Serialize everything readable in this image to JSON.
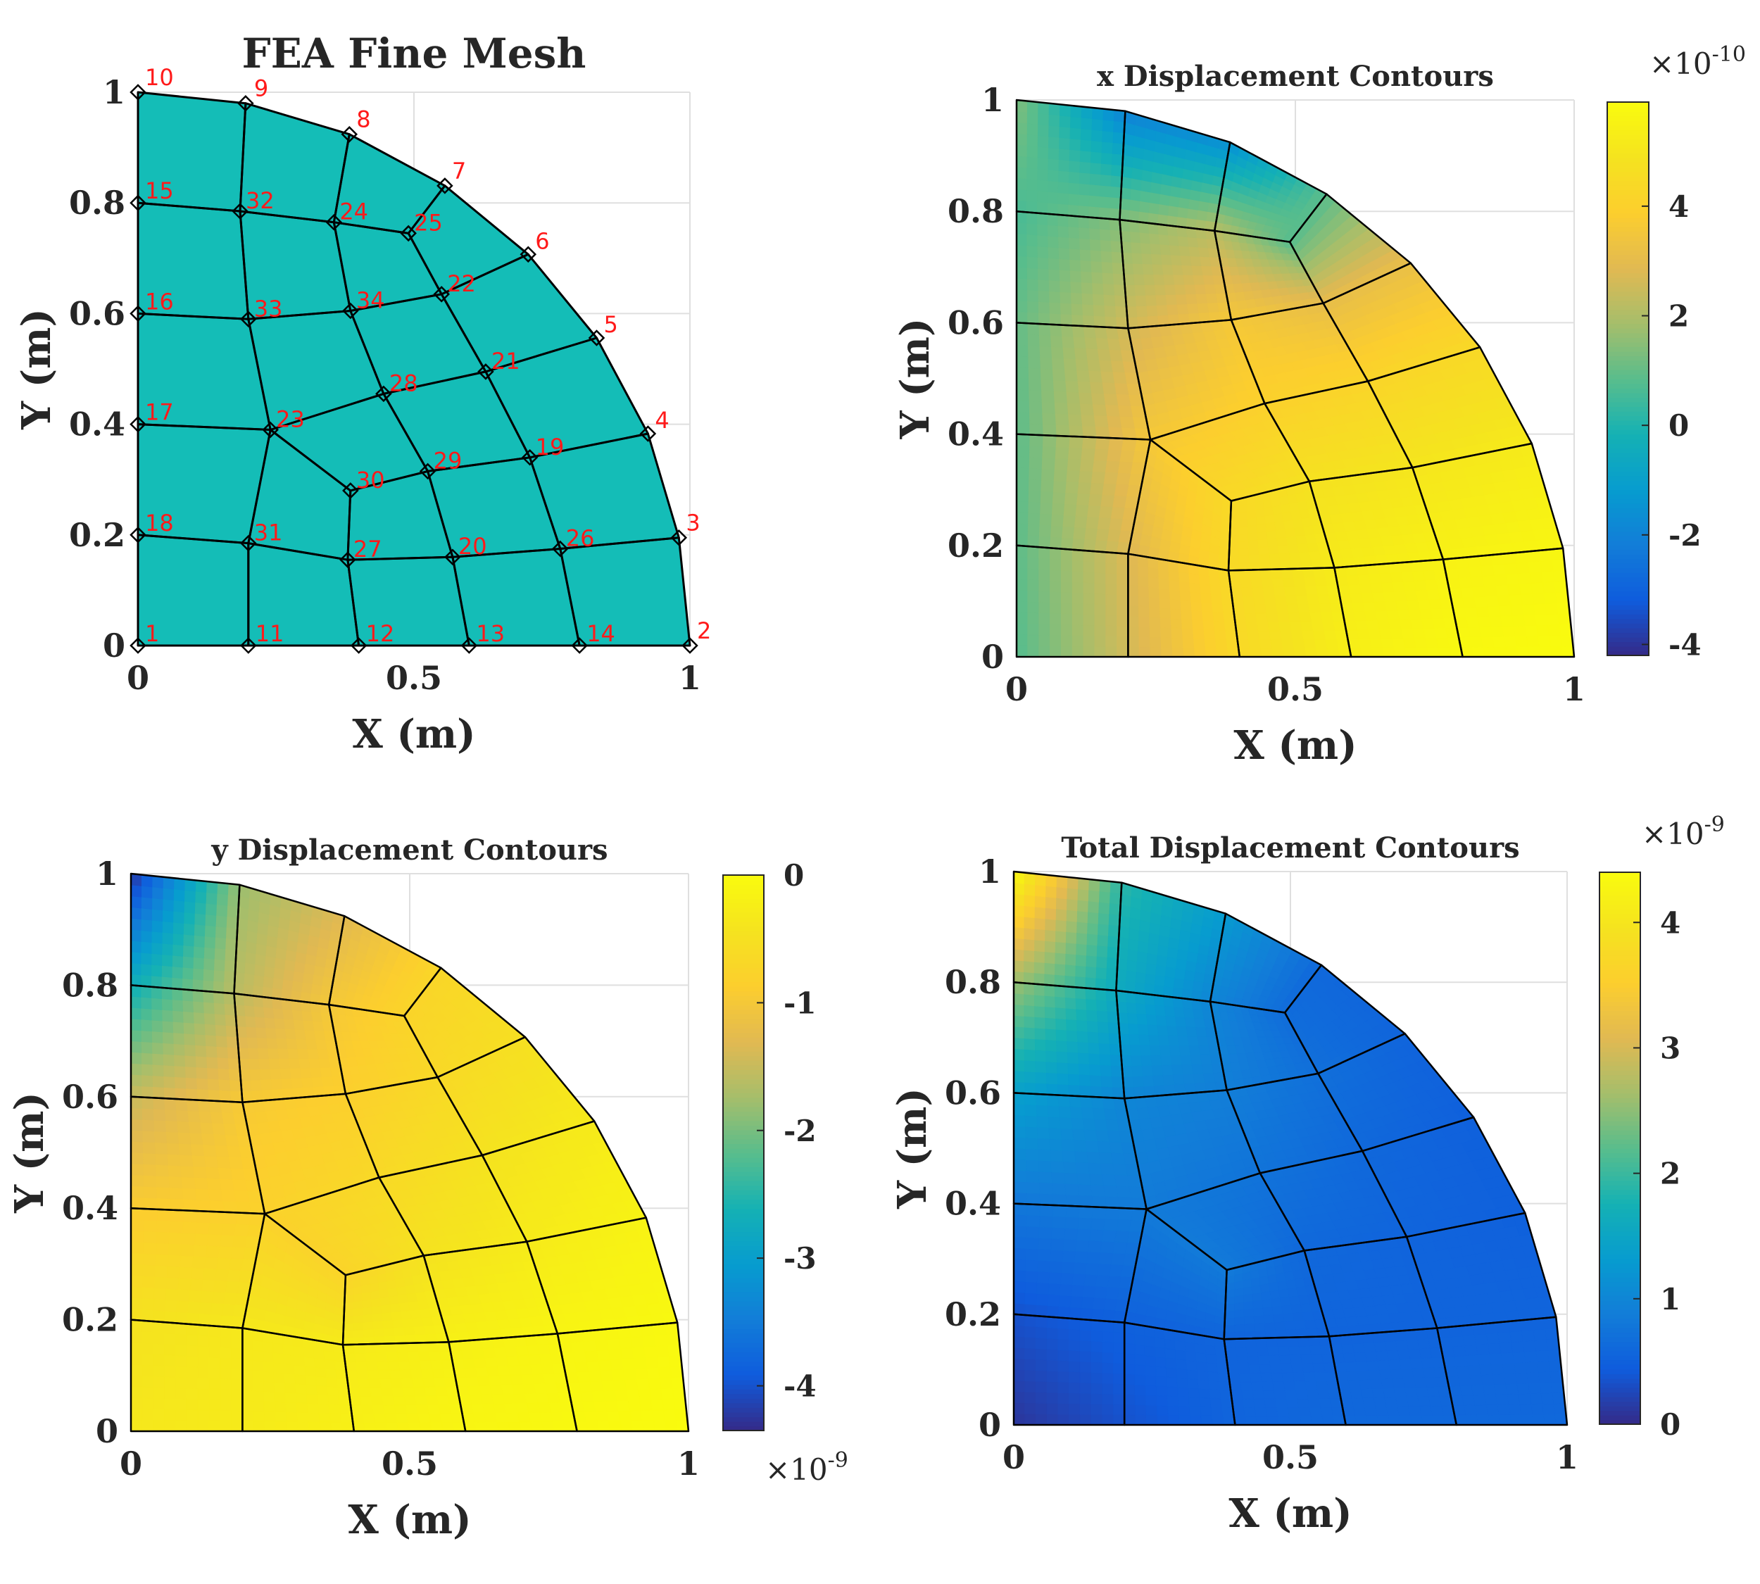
{
  "figure": {
    "panels": [
      {
        "title": "FEA Fine Mesh",
        "xlabel": "X (m)",
        "ylabel": "Y (m)"
      },
      {
        "title": "x Displacement Contours",
        "xlabel": "X (m)",
        "ylabel": "Y (m)",
        "colorbar": {
          "ticks": [
            "-4",
            "-2",
            "0",
            "2",
            "4"
          ],
          "exponent": "×10",
          "exponent_power": "-10"
        }
      },
      {
        "title": "y Displacement Contours",
        "xlabel": "X (m)",
        "ylabel": "Y (m)",
        "colorbar": {
          "ticks": [
            "-4",
            "-3",
            "-2",
            "-1",
            "0"
          ],
          "exponent": "×10",
          "exponent_power": "-9"
        }
      },
      {
        "title": "Total Displacement Contours",
        "xlabel": "X (m)",
        "ylabel": "Y (m)",
        "colorbar": {
          "ticks": [
            "0",
            "1",
            "2",
            "3",
            "4"
          ],
          "exponent": "×10",
          "exponent_power": "-9"
        }
      }
    ],
    "colors": {
      "mesh_fill": "#14bdb7",
      "edge": "#000000",
      "node_label": "#ff1a1a",
      "grid": "#dfdfdf"
    }
  },
  "chart_data": [
    {
      "type": "mesh",
      "title": "FEA Fine Mesh",
      "xlabel": "X (m)",
      "ylabel": "Y (m)",
      "xlim": [
        0,
        1
      ],
      "ylim": [
        0,
        1
      ],
      "xticks": [
        "0",
        "0.5",
        "1"
      ],
      "yticks": [
        "0",
        "0.2",
        "0.4",
        "0.6",
        "0.8",
        "1"
      ],
      "grid": true,
      "nodes": [
        {
          "id": "1",
          "x": 0,
          "y": 0
        },
        {
          "id": "2",
          "x": 1,
          "y": 0
        },
        {
          "id": "3",
          "x": 0.98,
          "y": 0.195
        },
        {
          "id": "4",
          "x": 0.924,
          "y": 0.383
        },
        {
          "id": "5",
          "x": 0.831,
          "y": 0.556
        },
        {
          "id": "6",
          "x": 0.707,
          "y": 0.707
        },
        {
          "id": "7",
          "x": 0.556,
          "y": 0.831
        },
        {
          "id": "8",
          "x": 0.383,
          "y": 0.924
        },
        {
          "id": "9",
          "x": 0.195,
          "y": 0.98
        },
        {
          "id": "10",
          "x": 0,
          "y": 1
        },
        {
          "id": "11",
          "x": 0.2,
          "y": 0
        },
        {
          "id": "12",
          "x": 0.4,
          "y": 0
        },
        {
          "id": "13",
          "x": 0.6,
          "y": 0
        },
        {
          "id": "14",
          "x": 0.8,
          "y": 0
        },
        {
          "id": "15",
          "x": 0,
          "y": 0.8
        },
        {
          "id": "16",
          "x": 0,
          "y": 0.6
        },
        {
          "id": "17",
          "x": 0,
          "y": 0.4
        },
        {
          "id": "18",
          "x": 0,
          "y": 0.2
        },
        {
          "id": "19",
          "x": 0.71,
          "y": 0.34
        },
        {
          "id": "20",
          "x": 0.57,
          "y": 0.16
        },
        {
          "id": "21",
          "x": 0.63,
          "y": 0.495
        },
        {
          "id": "22",
          "x": 0.55,
          "y": 0.635
        },
        {
          "id": "23",
          "x": 0.24,
          "y": 0.39
        },
        {
          "id": "24",
          "x": 0.355,
          "y": 0.765
        },
        {
          "id": "25",
          "x": 0.49,
          "y": 0.745
        },
        {
          "id": "26",
          "x": 0.765,
          "y": 0.175
        },
        {
          "id": "27",
          "x": 0.38,
          "y": 0.155
        },
        {
          "id": "28",
          "x": 0.445,
          "y": 0.455
        },
        {
          "id": "29",
          "x": 0.525,
          "y": 0.315
        },
        {
          "id": "30",
          "x": 0.385,
          "y": 0.28
        },
        {
          "id": "31",
          "x": 0.2,
          "y": 0.185
        },
        {
          "id": "32",
          "x": 0.185,
          "y": 0.785
        },
        {
          "id": "33",
          "x": 0.2,
          "y": 0.59
        },
        {
          "id": "34",
          "x": 0.385,
          "y": 0.605
        }
      ],
      "elements": [
        [
          "1",
          "11",
          "31",
          "18"
        ],
        [
          "11",
          "12",
          "27",
          "31"
        ],
        [
          "12",
          "13",
          "20",
          "27"
        ],
        [
          "13",
          "14",
          "26",
          "20"
        ],
        [
          "14",
          "2",
          "3",
          "26"
        ],
        [
          "18",
          "31",
          "23",
          "17"
        ],
        [
          "31",
          "27",
          "30",
          "23"
        ],
        [
          "27",
          "20",
          "29",
          "30"
        ],
        [
          "20",
          "26",
          "19",
          "29"
        ],
        [
          "26",
          "3",
          "4",
          "19"
        ],
        [
          "17",
          "23",
          "33",
          "16"
        ],
        [
          "23",
          "30",
          "29",
          "28"
        ],
        [
          "29",
          "19",
          "21",
          "28"
        ],
        [
          "19",
          "4",
          "5",
          "21"
        ],
        [
          "23",
          "28",
          "34",
          "33"
        ],
        [
          "28",
          "21",
          "22",
          "34"
        ],
        [
          "21",
          "5",
          "6",
          "22"
        ],
        [
          "16",
          "33",
          "32",
          "15"
        ],
        [
          "33",
          "34",
          "24",
          "32"
        ],
        [
          "34",
          "22",
          "25",
          "24"
        ],
        [
          "22",
          "6",
          "7",
          "25"
        ],
        [
          "15",
          "32",
          "9",
          "10"
        ],
        [
          "32",
          "24",
          "8",
          "9"
        ],
        [
          "24",
          "25",
          "7",
          "8"
        ]
      ]
    },
    {
      "type": "heatmap",
      "title": "x Displacement Contours",
      "xlabel": "X (m)",
      "ylabel": "Y (m)",
      "xlim": [
        0,
        1
      ],
      "ylim": [
        0,
        1
      ],
      "xticks": [
        "0",
        "0.5",
        "1"
      ],
      "yticks": [
        "0",
        "0.2",
        "0.4",
        "0.6",
        "0.8",
        "1"
      ],
      "colorbar_ticks": [
        -4,
        -2,
        0,
        2,
        4
      ],
      "clim": [
        -4.2,
        5.9
      ],
      "multiplier": "1e-10",
      "nodal_values": {
        "1": 0.8,
        "11": 2.6,
        "12": 4.4,
        "13": 5.4,
        "14": 5.8,
        "2": 5.9,
        "18": 0.9,
        "31": 2.8,
        "27": 4.4,
        "20": 5.2,
        "26": 5.5,
        "3": 5.7,
        "17": 0.9,
        "23": 3.6,
        "30": 4.4,
        "29": 4.8,
        "19": 5.0,
        "4": 5.2,
        "16": 1.0,
        "33": 2.6,
        "34": 3.6,
        "28": 4.0,
        "21": 4.2,
        "5": 4.4,
        "15": 0.6,
        "32": 1.4,
        "24": 2.2,
        "22": 3.1,
        "6": 3.2,
        "25": 0.8,
        "7": 0.9,
        "10": 1.4,
        "9": -2.0,
        "8": -1.6
      }
    },
    {
      "type": "heatmap",
      "title": "y Displacement Contours",
      "xlabel": "X (m)",
      "ylabel": "Y (m)",
      "xlim": [
        0,
        1
      ],
      "ylim": [
        0,
        1
      ],
      "xticks": [
        "0",
        "0.5",
        "1"
      ],
      "yticks": [
        "0",
        "0.2",
        "0.4",
        "0.6",
        "0.8",
        "1"
      ],
      "colorbar_ticks": [
        -4,
        -3,
        -2,
        -1,
        0
      ],
      "clim": [
        -4.35,
        0
      ],
      "multiplier": "1e-9",
      "nodal_values": {
        "1": -0.35,
        "11": -0.3,
        "12": -0.2,
        "13": -0.1,
        "14": -0.05,
        "2": 0.0,
        "18": -0.45,
        "31": -0.35,
        "27": -0.3,
        "20": -0.2,
        "26": -0.12,
        "3": -0.05,
        "17": -0.9,
        "23": -0.8,
        "30": -0.75,
        "29": -0.45,
        "19": -0.3,
        "4": -0.15,
        "16": -1.5,
        "33": -0.95,
        "34": -0.85,
        "28": -0.65,
        "21": -0.45,
        "5": -0.3,
        "15": -2.7,
        "32": -1.6,
        "24": -1.0,
        "22": -0.65,
        "6": -0.5,
        "25": -0.75,
        "7": -0.7,
        "10": -4.3,
        "9": -1.8,
        "8": -1.3
      }
    },
    {
      "type": "heatmap",
      "title": "Total Displacement Contours",
      "xlabel": "X (m)",
      "ylabel": "Y (m)",
      "xlim": [
        0,
        1
      ],
      "ylim": [
        0,
        1
      ],
      "xticks": [
        "0",
        "0.5",
        "1"
      ],
      "yticks": [
        "0",
        "0.2",
        "0.4",
        "0.6",
        "0.8",
        "1"
      ],
      "colorbar_ticks": [
        0,
        1,
        2,
        3,
        4
      ],
      "clim": [
        0,
        4.4
      ],
      "multiplier": "1e-9",
      "nodal_values": {
        "1": 0.1,
        "11": 0.35,
        "12": 0.55,
        "13": 0.6,
        "14": 0.6,
        "2": 0.6,
        "18": 0.35,
        "31": 0.5,
        "27": 0.55,
        "20": 0.55,
        "26": 0.55,
        "3": 0.55,
        "17": 0.8,
        "23": 0.85,
        "30": 0.85,
        "29": 0.6,
        "19": 0.55,
        "4": 0.5,
        "16": 1.4,
        "33": 1.0,
        "34": 0.9,
        "28": 0.75,
        "21": 0.6,
        "5": 0.5,
        "15": 2.6,
        "32": 1.6,
        "24": 1.0,
        "22": 0.7,
        "6": 0.55,
        "25": 0.65,
        "7": 0.6,
        "10": 4.4,
        "9": 1.9,
        "8": 1.3
      }
    }
  ]
}
